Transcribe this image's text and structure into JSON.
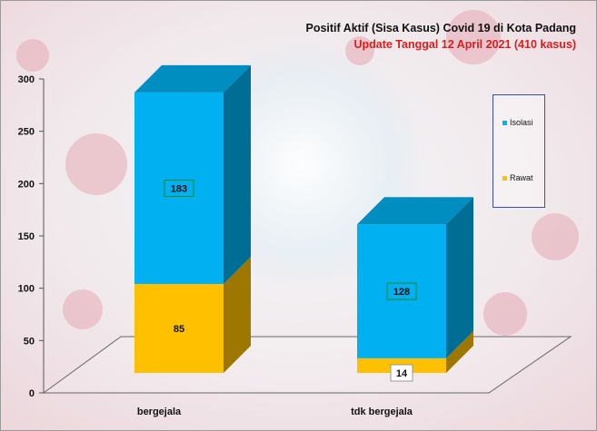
{
  "title": "Positif Aktif  (Sisa Kasus) Covid 19 di Kota Padang",
  "subtitle": "Update Tanggal 12 April 2021  (410 kasus)",
  "colors": {
    "isolasi": "#00b0f0",
    "rawat": "#ffc000",
    "title": "#111111",
    "subtitle": "#e01b1b",
    "legend_border": "#3a4fb0"
  },
  "chart_data": {
    "type": "bar",
    "stacked": true,
    "three_d": true,
    "categories": [
      "bergejala",
      "tdk bergejala"
    ],
    "series": [
      {
        "name": "Rawat",
        "values": [
          85,
          14
        ]
      },
      {
        "name": "Isolasi",
        "values": [
          183,
          128
        ]
      }
    ],
    "yticks": [
      "0",
      "50",
      "100",
      "150",
      "200",
      "250",
      "300"
    ],
    "ylim": [
      0,
      300
    ],
    "xlabel": "",
    "ylabel": "",
    "legend": "right",
    "grid": false
  },
  "legend": {
    "items": [
      {
        "label": "Isolasi",
        "color": "#00b0f0"
      },
      {
        "label": "Rawat",
        "color": "#ffc000"
      }
    ]
  }
}
